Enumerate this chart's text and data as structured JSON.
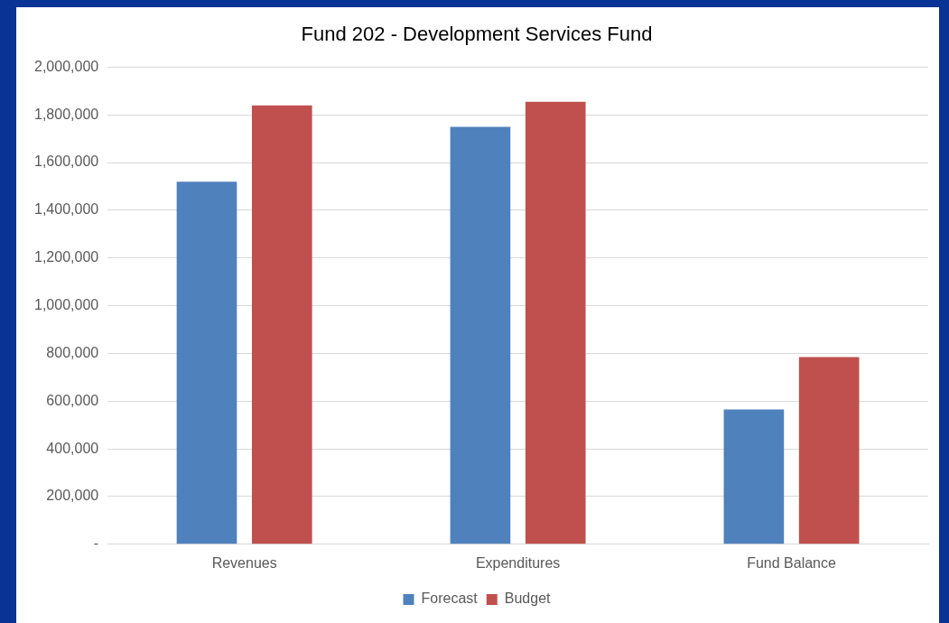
{
  "chart_data": {
    "type": "bar",
    "title": "Fund 202 - Development Services Fund",
    "categories": [
      "Revenues",
      "Expenditures",
      "Fund Balance"
    ],
    "series": [
      {
        "name": "Forecast",
        "color": "#4f81bd",
        "values": [
          1520000,
          1750000,
          565000
        ]
      },
      {
        "name": "Budget",
        "color": "#c0504d",
        "values": [
          1840000,
          1855000,
          785000
        ]
      }
    ],
    "ylim": [
      0,
      2000000
    ],
    "yticks": [
      {
        "value": 0,
        "label": "-"
      },
      {
        "value": 200000,
        "label": "200,000"
      },
      {
        "value": 400000,
        "label": "400,000"
      },
      {
        "value": 600000,
        "label": "600,000"
      },
      {
        "value": 800000,
        "label": "800,000"
      },
      {
        "value": 1000000,
        "label": "1,000,000"
      },
      {
        "value": 1200000,
        "label": "1,200,000"
      },
      {
        "value": 1400000,
        "label": "1,400,000"
      },
      {
        "value": 1600000,
        "label": "1,600,000"
      },
      {
        "value": 1800000,
        "label": "1,800,000"
      },
      {
        "value": 2000000,
        "label": "2,000,000"
      }
    ],
    "grid": "y",
    "legend": "bottom"
  }
}
